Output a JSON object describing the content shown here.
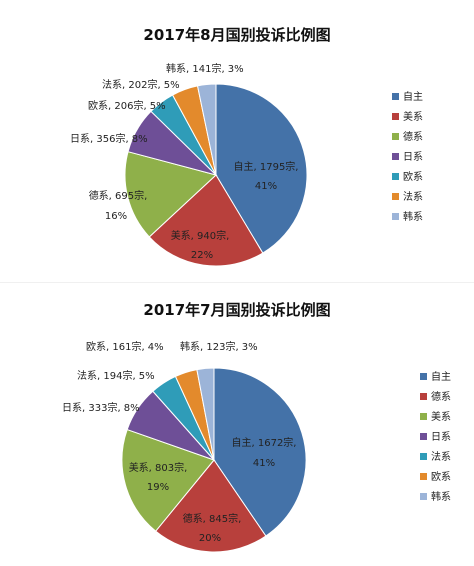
{
  "chart_data": [
    {
      "type": "pie",
      "title": "2017年8月国别投诉比例图",
      "slices": [
        {
          "name": "自主",
          "value": 1795,
          "percent": 41,
          "color": "#4472a8",
          "label": "自主, 1795宗,",
          "pct_label": "41%"
        },
        {
          "name": "美系",
          "value": 940,
          "percent": 22,
          "color": "#b8403c",
          "label": "美系, 940宗,",
          "pct_label": "22%"
        },
        {
          "name": "德系",
          "value": 695,
          "percent": 16,
          "color": "#8fb04a",
          "label": "德系, 695宗,",
          "pct_label": "16%"
        },
        {
          "name": "日系",
          "value": 356,
          "percent": 8,
          "color": "#6e4f97",
          "label": "日系, 356宗, 8%",
          "pct_label": ""
        },
        {
          "name": "欧系",
          "value": 206,
          "percent": 5,
          "color": "#2f9cb8",
          "label": "欧系, 206宗, 5%",
          "pct_label": ""
        },
        {
          "name": "法系",
          "value": 202,
          "percent": 5,
          "color": "#e38a2c",
          "label": "法系, 202宗, 5%",
          "pct_label": ""
        },
        {
          "name": "韩系",
          "value": 141,
          "percent": 3,
          "color": "#9cb4d8",
          "label": "韩系, 141宗, 3%",
          "pct_label": ""
        }
      ],
      "legend": [
        "自主",
        "美系",
        "德系",
        "日系",
        "欧系",
        "法系",
        "韩系"
      ],
      "legend_position": "right"
    },
    {
      "type": "pie",
      "title": "2017年7月国别投诉比例图",
      "slices": [
        {
          "name": "自主",
          "value": 1672,
          "percent": 41,
          "color": "#4472a8",
          "label": "自主, 1672宗,",
          "pct_label": "41%"
        },
        {
          "name": "德系",
          "value": 845,
          "percent": 20,
          "color": "#b8403c",
          "label": "德系, 845宗,",
          "pct_label": "20%"
        },
        {
          "name": "美系",
          "value": 803,
          "percent": 19,
          "color": "#8fb04a",
          "label": "美系, 803宗,",
          "pct_label": "19%"
        },
        {
          "name": "日系",
          "value": 333,
          "percent": 8,
          "color": "#6e4f97",
          "label": "日系, 333宗, 8%",
          "pct_label": ""
        },
        {
          "name": "法系",
          "value": 194,
          "percent": 5,
          "color": "#2f9cb8",
          "label": "法系, 194宗, 5%",
          "pct_label": ""
        },
        {
          "name": "欧系",
          "value": 161,
          "percent": 4,
          "color": "#e38a2c",
          "label": "欧系, 161宗, 4%",
          "pct_label": ""
        },
        {
          "name": "韩系",
          "value": 123,
          "percent": 3,
          "color": "#9cb4d8",
          "label": "韩系, 123宗, 3%",
          "pct_label": ""
        }
      ],
      "legend": [
        "自主",
        "德系",
        "美系",
        "日系",
        "法系",
        "欧系",
        "韩系"
      ],
      "legend_position": "right"
    }
  ]
}
